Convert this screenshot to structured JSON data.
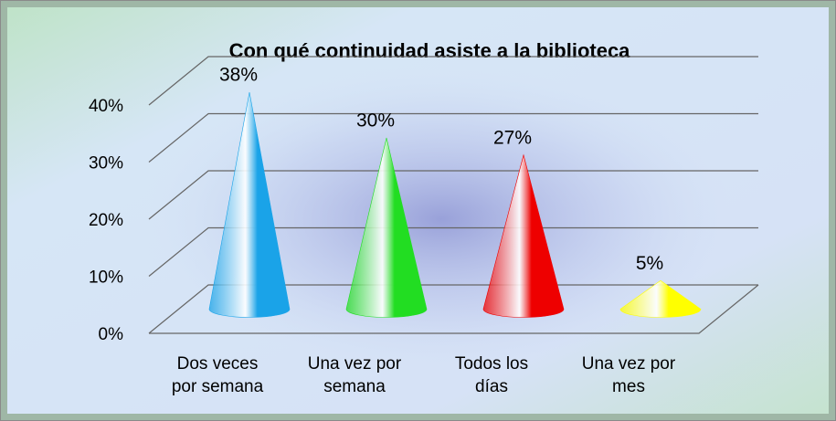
{
  "chart_data": {
    "type": "cone3d",
    "title": "Con qué continuidad asiste a la biblioteca",
    "categories": [
      "Dos veces por semana",
      "Una vez por semana",
      "Todos los días",
      "Una vez por mes"
    ],
    "values": [
      38,
      30,
      27,
      5
    ],
    "value_labels": [
      "38%",
      "30%",
      "27%",
      "5%"
    ],
    "colors": [
      "#1aa3e8",
      "#22dd22",
      "#ee0000",
      "#ffff00"
    ],
    "ylim": [
      0,
      40
    ],
    "yticks": [
      {
        "value": 0,
        "label": "0%"
      },
      {
        "value": 10,
        "label": "10%"
      },
      {
        "value": 20,
        "label": "20%"
      },
      {
        "value": 30,
        "label": "30%"
      },
      {
        "value": 40,
        "label": "40%"
      }
    ],
    "grid": true
  }
}
